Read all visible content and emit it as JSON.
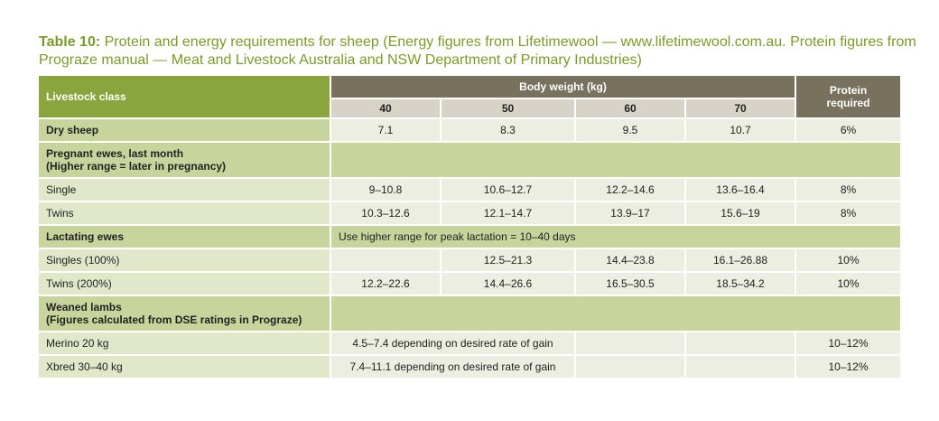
{
  "caption": {
    "label": "Table 10:",
    "text": "Protein and energy requirements for sheep (Energy figures from Lifetimewool — www.lifetimewool.com.au. Protein figures from Prograze manual — Meat and Livestock Australia and NSW Department of Primary Industries)"
  },
  "header": {
    "livestock_class": "Livestock class",
    "body_weight": "Body weight (kg)",
    "weights": [
      "40",
      "50",
      "60",
      "70"
    ],
    "protein_line1": "Protein",
    "protein_line2": "required"
  },
  "rows": {
    "dry_sheep": {
      "label": "Dry sheep",
      "values": [
        "7.1",
        "8.3",
        "9.5",
        "10.7"
      ],
      "protein": "6%"
    },
    "pregnant": {
      "line1": "Pregnant ewes, last month",
      "line2": "(Higher range = later in pregnancy)"
    },
    "single": {
      "label": "Single",
      "values": [
        "9–10.8",
        "10.6–12.7",
        "12.2–14.6",
        "13.6–16.4"
      ],
      "protein": "8%"
    },
    "twins": {
      "label": "Twins",
      "values": [
        "10.3–12.6",
        "12.1–14.7",
        "13.9–17",
        "15.6–19"
      ],
      "protein": "8%"
    },
    "lactating": {
      "label": "Lactating ewes",
      "note": "Use higher range for peak lactation = 10–40 days"
    },
    "singles_100": {
      "label": "Singles (100%)",
      "values": [
        "",
        "12.5–21.3",
        "14.4–23.8",
        "16.1–26.88"
      ],
      "protein": "10%"
    },
    "twins_200": {
      "label": "Twins (200%)",
      "values": [
        "12.2–22.6",
        "14.4–26.6",
        "16.5–30.5",
        "18.5–34.2"
      ],
      "protein": "10%"
    },
    "weaned": {
      "line1": "Weaned lambs",
      "line2": "(Figures calculated from DSE ratings in Prograze)"
    },
    "merino": {
      "label": "Merino  20 kg",
      "note": "4.5–7.4 depending on desired rate of gain",
      "protein": "10–12%"
    },
    "xbred": {
      "label": "Xbred 30–40 kg",
      "note": "7.4–11.1 depending on desired rate of gain",
      "protein": "10–12%"
    }
  }
}
